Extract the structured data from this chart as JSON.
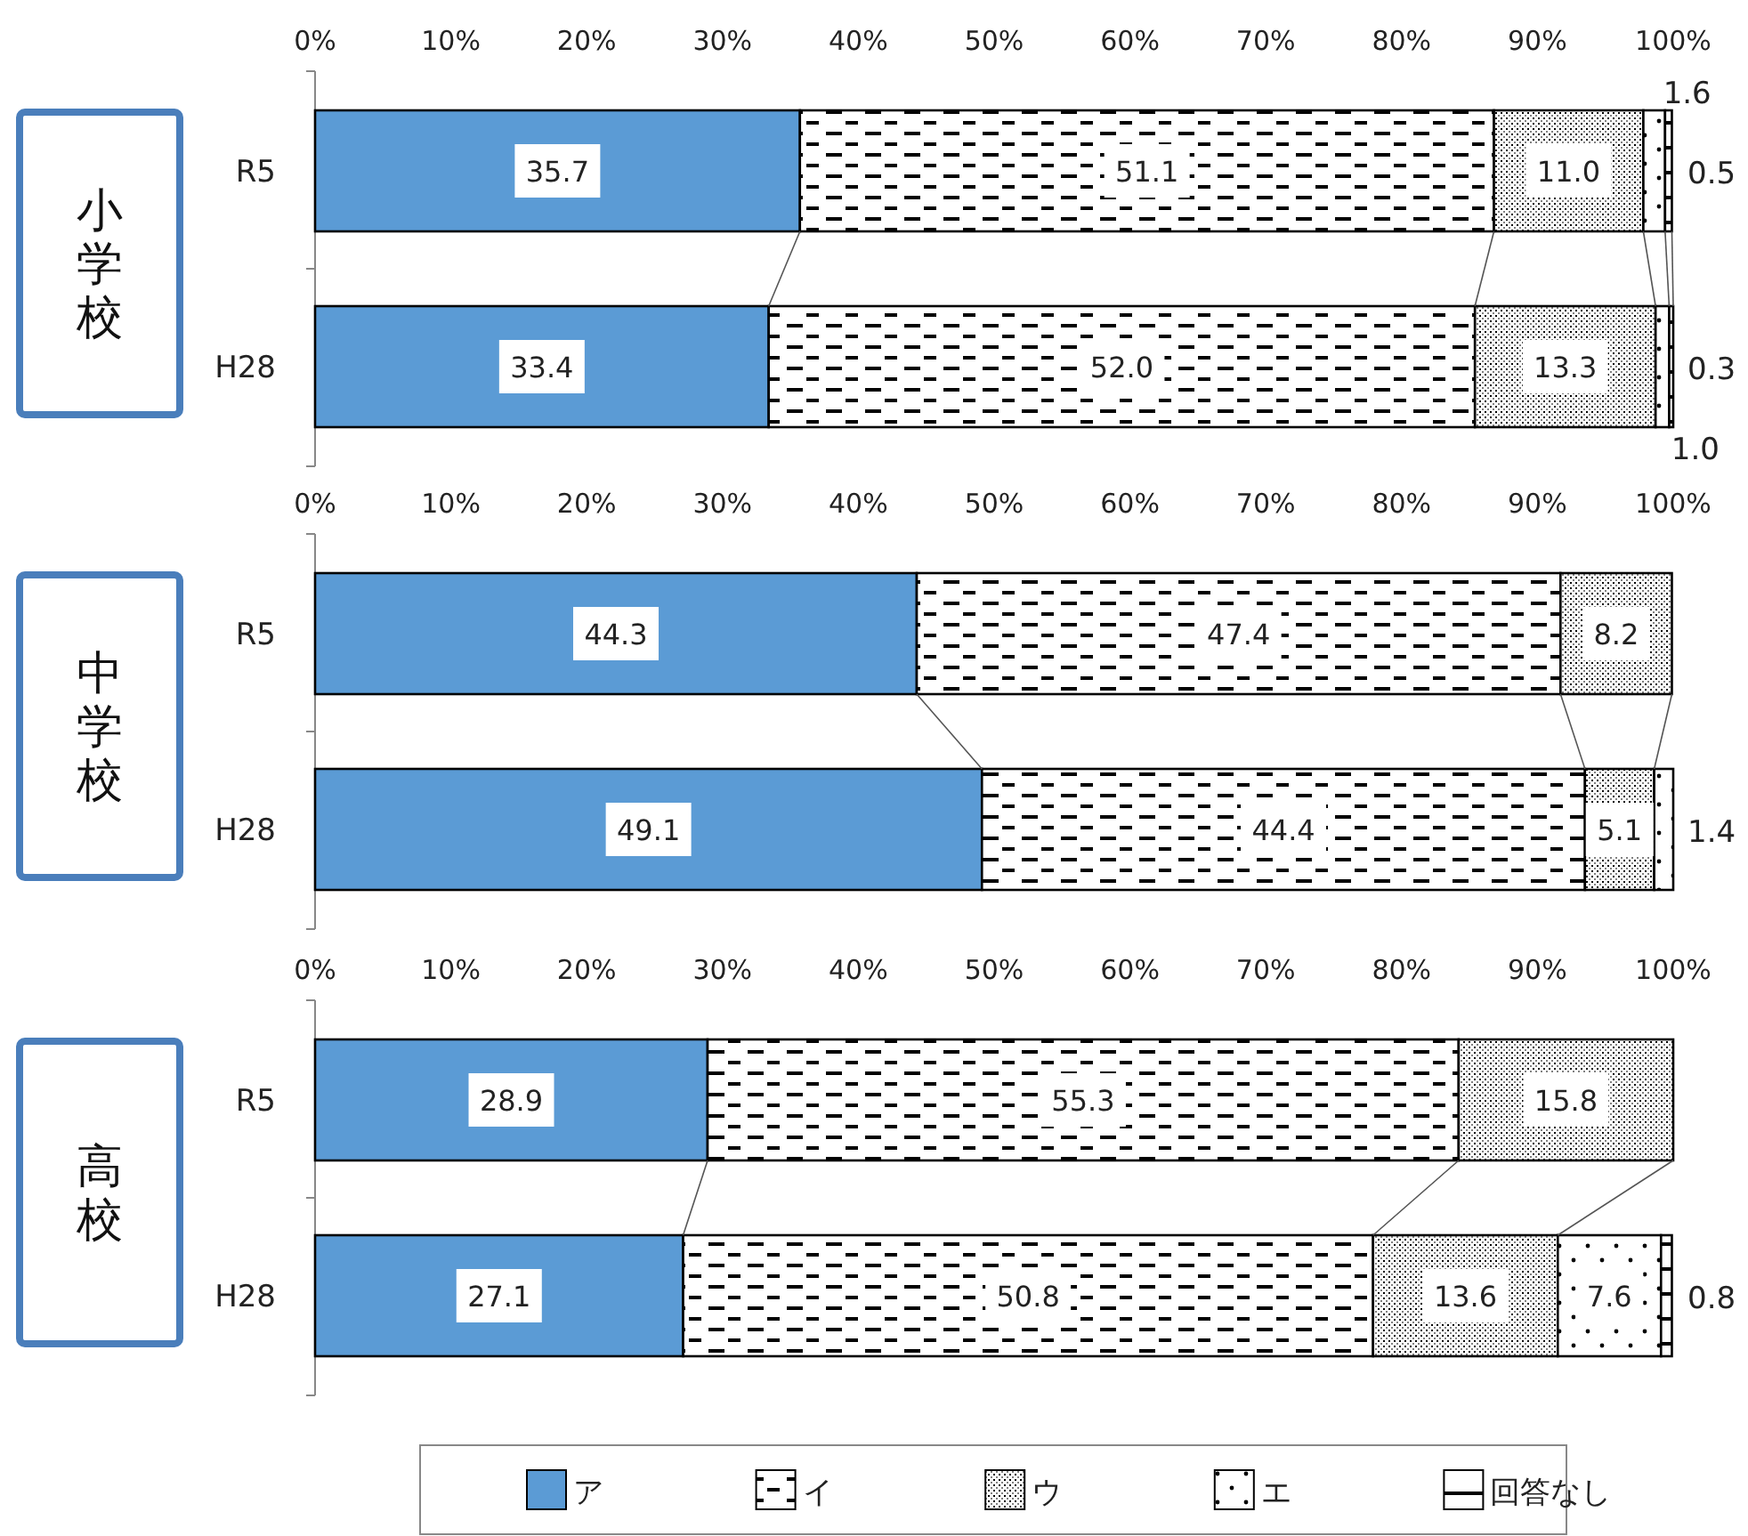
{
  "chart_data": [
    {
      "type": "bar",
      "orientation": "horizontal",
      "stacked": true,
      "title": "小学校",
      "categories": [
        "R5",
        "H28"
      ],
      "xlim": [
        0,
        100
      ],
      "xticks": [
        {
          "value": 0,
          "label": "0%"
        },
        {
          "value": 10,
          "label": "10%"
        },
        {
          "value": 20,
          "label": "20%"
        },
        {
          "value": 30,
          "label": "30%"
        },
        {
          "value": 40,
          "label": "40%"
        },
        {
          "value": 50,
          "label": "50%"
        },
        {
          "value": 60,
          "label": "60%"
        },
        {
          "value": 70,
          "label": "70%"
        },
        {
          "value": 80,
          "label": "80%"
        },
        {
          "value": 90,
          "label": "90%"
        },
        {
          "value": 100,
          "label": "100%"
        }
      ],
      "grid": false,
      "legend": false,
      "series": [
        {
          "color": "#5b9bd5",
          "values": [
            35.7,
            33.4
          ],
          "value_labels": [
            "35.7",
            "33.4"
          ]
        },
        {
          "color": "#000000",
          "values": [
            51.1,
            52.0
          ],
          "value_labels": [
            "51.1",
            "52.0"
          ]
        },
        {
          "color": "#000000",
          "values": [
            11.0,
            13.3
          ],
          "value_labels": [
            "11.0",
            "13.3"
          ]
        },
        {
          "color": "#000000",
          "values": [
            1.6,
            1.0
          ],
          "value_labels": [
            "1.6",
            "1.0"
          ]
        },
        {
          "color": "#000000",
          "values": [
            0.5,
            0.3
          ],
          "value_labels": [
            "0.5",
            "0.3"
          ]
        }
      ]
    },
    {
      "type": "bar",
      "orientation": "horizontal",
      "stacked": true,
      "title": "中学校",
      "categories": [
        "R5",
        "H28"
      ],
      "xlim": [
        0,
        100
      ],
      "xticks": [
        {
          "value": 0,
          "label": "0%"
        },
        {
          "value": 10,
          "label": "10%"
        },
        {
          "value": 20,
          "label": "20%"
        },
        {
          "value": 30,
          "label": "30%"
        },
        {
          "value": 40,
          "label": "40%"
        },
        {
          "value": 50,
          "label": "50%"
        },
        {
          "value": 60,
          "label": "60%"
        },
        {
          "value": 70,
          "label": "70%"
        },
        {
          "value": 80,
          "label": "80%"
        },
        {
          "value": 90,
          "label": "90%"
        },
        {
          "value": 100,
          "label": "100%"
        }
      ],
      "grid": false,
      "legend": false,
      "series": [
        {
          "color": "#5b9bd5",
          "values": [
            44.3,
            49.1
          ],
          "value_labels": [
            "44.3",
            "49.1"
          ]
        },
        {
          "color": "#000000",
          "values": [
            47.4,
            44.4
          ],
          "value_labels": [
            "47.4",
            "44.4"
          ]
        },
        {
          "color": "#000000",
          "values": [
            8.2,
            5.1
          ],
          "value_labels": [
            "8.2",
            "5.1"
          ]
        },
        {
          "color": "#000000",
          "values": [
            null,
            1.4
          ],
          "value_labels": [
            null,
            "1.4"
          ]
        }
      ]
    },
    {
      "type": "bar",
      "orientation": "horizontal",
      "stacked": true,
      "title": "高校",
      "categories": [
        "R5",
        "H28"
      ],
      "xlim": [
        0,
        100
      ],
      "xticks": [
        {
          "value": 0,
          "label": "0%"
        },
        {
          "value": 10,
          "label": "10%"
        },
        {
          "value": 20,
          "label": "20%"
        },
        {
          "value": 30,
          "label": "30%"
        },
        {
          "value": 40,
          "label": "40%"
        },
        {
          "value": 50,
          "label": "50%"
        },
        {
          "value": 60,
          "label": "60%"
        },
        {
          "value": 70,
          "label": "70%"
        },
        {
          "value": 80,
          "label": "80%"
        },
        {
          "value": 90,
          "label": "90%"
        },
        {
          "value": 100,
          "label": "100%"
        }
      ],
      "grid": false,
      "legend": "bottom",
      "series": [
        {
          "name": "ア",
          "color": "#5b9bd5",
          "values": [
            28.9,
            27.1
          ],
          "value_labels": [
            "28.9",
            "27.1"
          ]
        },
        {
          "name": "イ",
          "color": "#000000",
          "values": [
            55.3,
            50.8
          ],
          "value_labels": [
            "55.3",
            "50.8"
          ]
        },
        {
          "name": "ウ",
          "color": "#000000",
          "values": [
            15.8,
            13.6
          ],
          "value_labels": [
            "15.8",
            "13.6"
          ]
        },
        {
          "name": "エ",
          "color": "#000000",
          "values": [
            null,
            7.6
          ],
          "value_labels": [
            null,
            "7.6"
          ]
        },
        {
          "name": "回答なし",
          "color": "#000000",
          "values": [
            null,
            0.8
          ],
          "value_labels": [
            null,
            "0.8"
          ]
        }
      ]
    }
  ]
}
